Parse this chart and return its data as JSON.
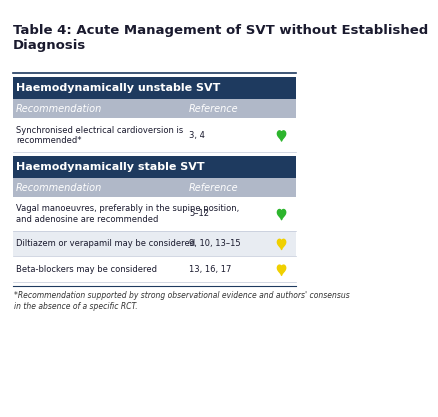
{
  "title": "Table 4: Acute Management of SVT without Established\nDiagnosis",
  "title_fontsize": 9.5,
  "title_color": "#1a1a2e",
  "bg_color": "#ffffff",
  "section1_header": "Haemodynamically unstable SVT",
  "section2_header": "Haemodynamically stable SVT",
  "section_header_bg": "#1e3a5f",
  "section_header_color": "#ffffff",
  "subheader_bg": "#b0b8c8",
  "subheader_color": "#ffffff",
  "row_bg_odd": "#ffffff",
  "row_bg_even": "#e8ecf2",
  "row_divider_color": "#c0c8d8",
  "col_header_rec": "Recommendation",
  "col_header_ref": "Reference",
  "rows_unstable": [
    {
      "rec": "Synchronised electrical cardioversion is\nrecommended*",
      "ref": "3, 4",
      "heart_color": "#2db52d"
    }
  ],
  "rows_stable": [
    {
      "rec": "Vagal manoeuvres, preferably in the supine position,\nand adenosine are recommended",
      "ref": "5–12",
      "heart_color": "#2db52d"
    },
    {
      "rec": "Diltiazem or verapamil may be considered",
      "ref": "9, 10, 13–15",
      "heart_color": "#f0d000"
    },
    {
      "rec": "Beta-blockers may be considered",
      "ref": "13, 16, 17",
      "heart_color": "#f0d000"
    }
  ],
  "footnote": "*Recommendation supported by strong observational evidence and authors' consensus\nin the absence of a specific RCT.",
  "footnote_fontsize": 5.5,
  "border_color": "#1e3a5f"
}
